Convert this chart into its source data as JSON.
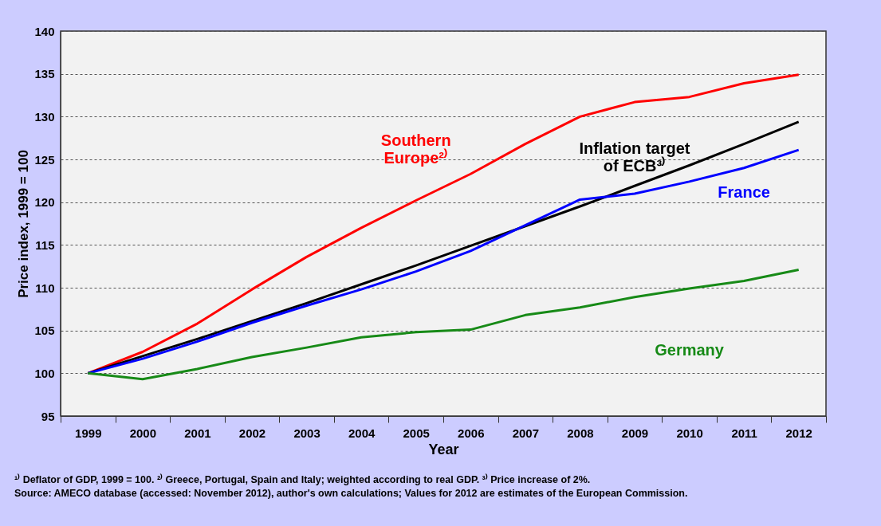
{
  "chart_data": {
    "type": "line",
    "xlabel": "Year",
    "ylabel": "Price index, 1999 = 100",
    "categories": [
      "1999",
      "2000",
      "2001",
      "2002",
      "2003",
      "2004",
      "2005",
      "2006",
      "2007",
      "2008",
      "2009",
      "2010",
      "2011",
      "2012"
    ],
    "series": [
      {
        "name": "Southern\nEurope²⁾",
        "color": "#ff0000",
        "values": [
          100,
          102.5,
          105.8,
          109.8,
          113.6,
          117,
          120.2,
          123.3,
          126.8,
          130,
          131.7,
          132.3,
          133.9,
          134.9
        ]
      },
      {
        "name": "Inflation target\nof ECB³⁾",
        "color": "#000000",
        "values": [
          100,
          102.0,
          104.0,
          106.1,
          108.2,
          110.4,
          112.6,
          114.9,
          117.2,
          119.5,
          121.9,
          124.3,
          126.8,
          129.4
        ]
      },
      {
        "name": "France",
        "color": "#0000ff",
        "values": [
          100,
          101.7,
          103.7,
          105.9,
          107.9,
          109.8,
          111.9,
          114.3,
          117.3,
          120.3,
          121.0,
          122.4,
          124.0,
          126.1
        ]
      },
      {
        "name": "Germany",
        "color": "#178a17",
        "values": [
          100,
          99.3,
          100.5,
          101.9,
          103.0,
          104.2,
          104.8,
          105.1,
          106.8,
          107.7,
          108.9,
          109.9,
          110.8,
          112.1
        ]
      }
    ],
    "ylim": [
      95,
      140
    ],
    "yticks": [
      95,
      100,
      105,
      110,
      115,
      120,
      125,
      130,
      135,
      140
    ],
    "grid": "y",
    "legend": false,
    "marker": "none",
    "line_style": "solid",
    "annotations": [
      "¹⁾ Deflator of GDP, 1999 = 100. ²⁾ Greece, Portugal, Spain and Italy; weighted according to real GDP. ³⁾ Price increase of 2%.",
      "Source: AMECO database (accessed: November 2012), author's own calculations; Values for 2012 are estimates of the European Commission."
    ]
  }
}
